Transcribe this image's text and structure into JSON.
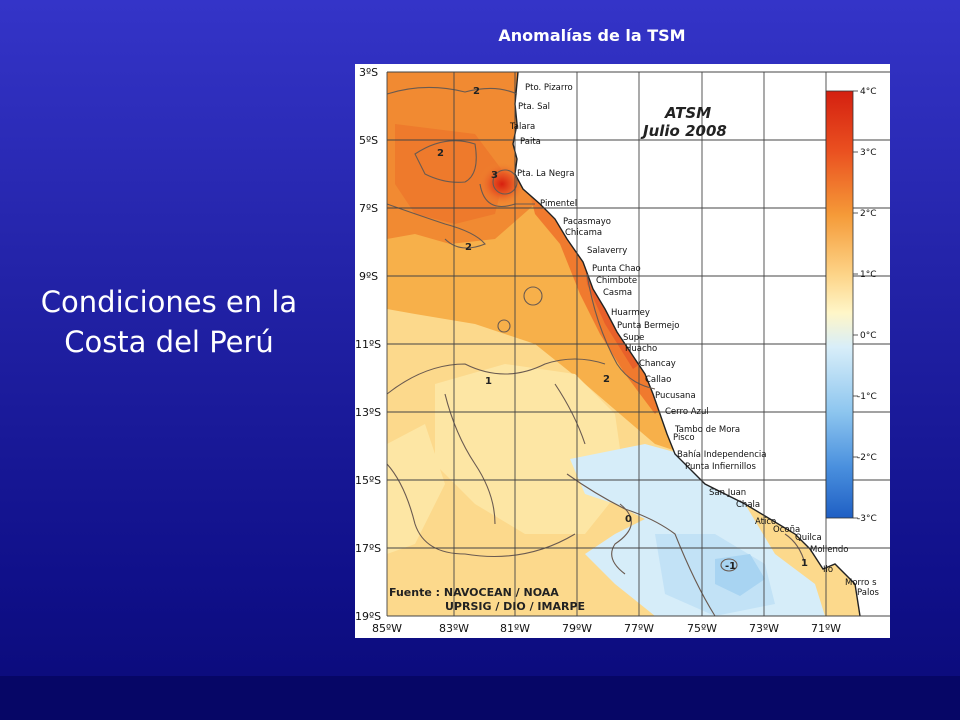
{
  "slide": {
    "title_line1": "Condiciones en la",
    "title_line2": "Costa del Perú",
    "map_heading": "Anomalías de la TSM"
  },
  "map": {
    "title_line1": "ATSM",
    "title_line2": "Julio 2008",
    "source_line1": "Fuente : NAVOCEAN / NOAA",
    "source_line2": "UPRSIG / DIO / IMARPE",
    "lat_labels": [
      "3ºS",
      "5ºS",
      "7ºS",
      "9ºS",
      "11ºS",
      "13ºS",
      "15ºS",
      "17ºS",
      "19ºS"
    ],
    "lon_labels": [
      "85ºW",
      "83ºW",
      "81ºW",
      "79ºW",
      "77ºW",
      "75ºW",
      "73ºW",
      "71ºW"
    ],
    "colorbar_labels": [
      "4°C",
      "3°C",
      "2°C",
      "1°C",
      "0°C",
      "-1°C",
      "-2°C",
      "-3°C"
    ],
    "contour_labels": [
      "2",
      "2",
      "3",
      "2",
      "1",
      "2",
      "0",
      "1",
      "-1"
    ],
    "colors": {
      "land": "#ffffff",
      "hot": "#e0301a",
      "warm": "#f7a43a",
      "mild": "#fde49a",
      "cool": "#d4ecf8",
      "cold": "#5fa6e8"
    },
    "places": [
      "Pto. Pizarro",
      "Pta. Sal",
      "Talara",
      "Paita",
      "Pta. La Negra",
      "Pimentel",
      "Pacasmayo",
      "Chicama",
      "Salaverry",
      "Punta Chao",
      "Chimbote",
      "Casma",
      "Huarmey",
      "Punta Bermejo",
      "Supe",
      "Huacho",
      "Chancay",
      "Callao",
      "Pucusana",
      "Cerro Azul",
      "Tambo de Mora",
      "Pisco",
      "Bahía Independencia",
      "Punta Infiernillos",
      "San Juan",
      "Chala",
      "Atico",
      "Ocoña",
      "Quilca",
      "Mollendo",
      "Ilo",
      "Morro s",
      "Palos"
    ]
  }
}
